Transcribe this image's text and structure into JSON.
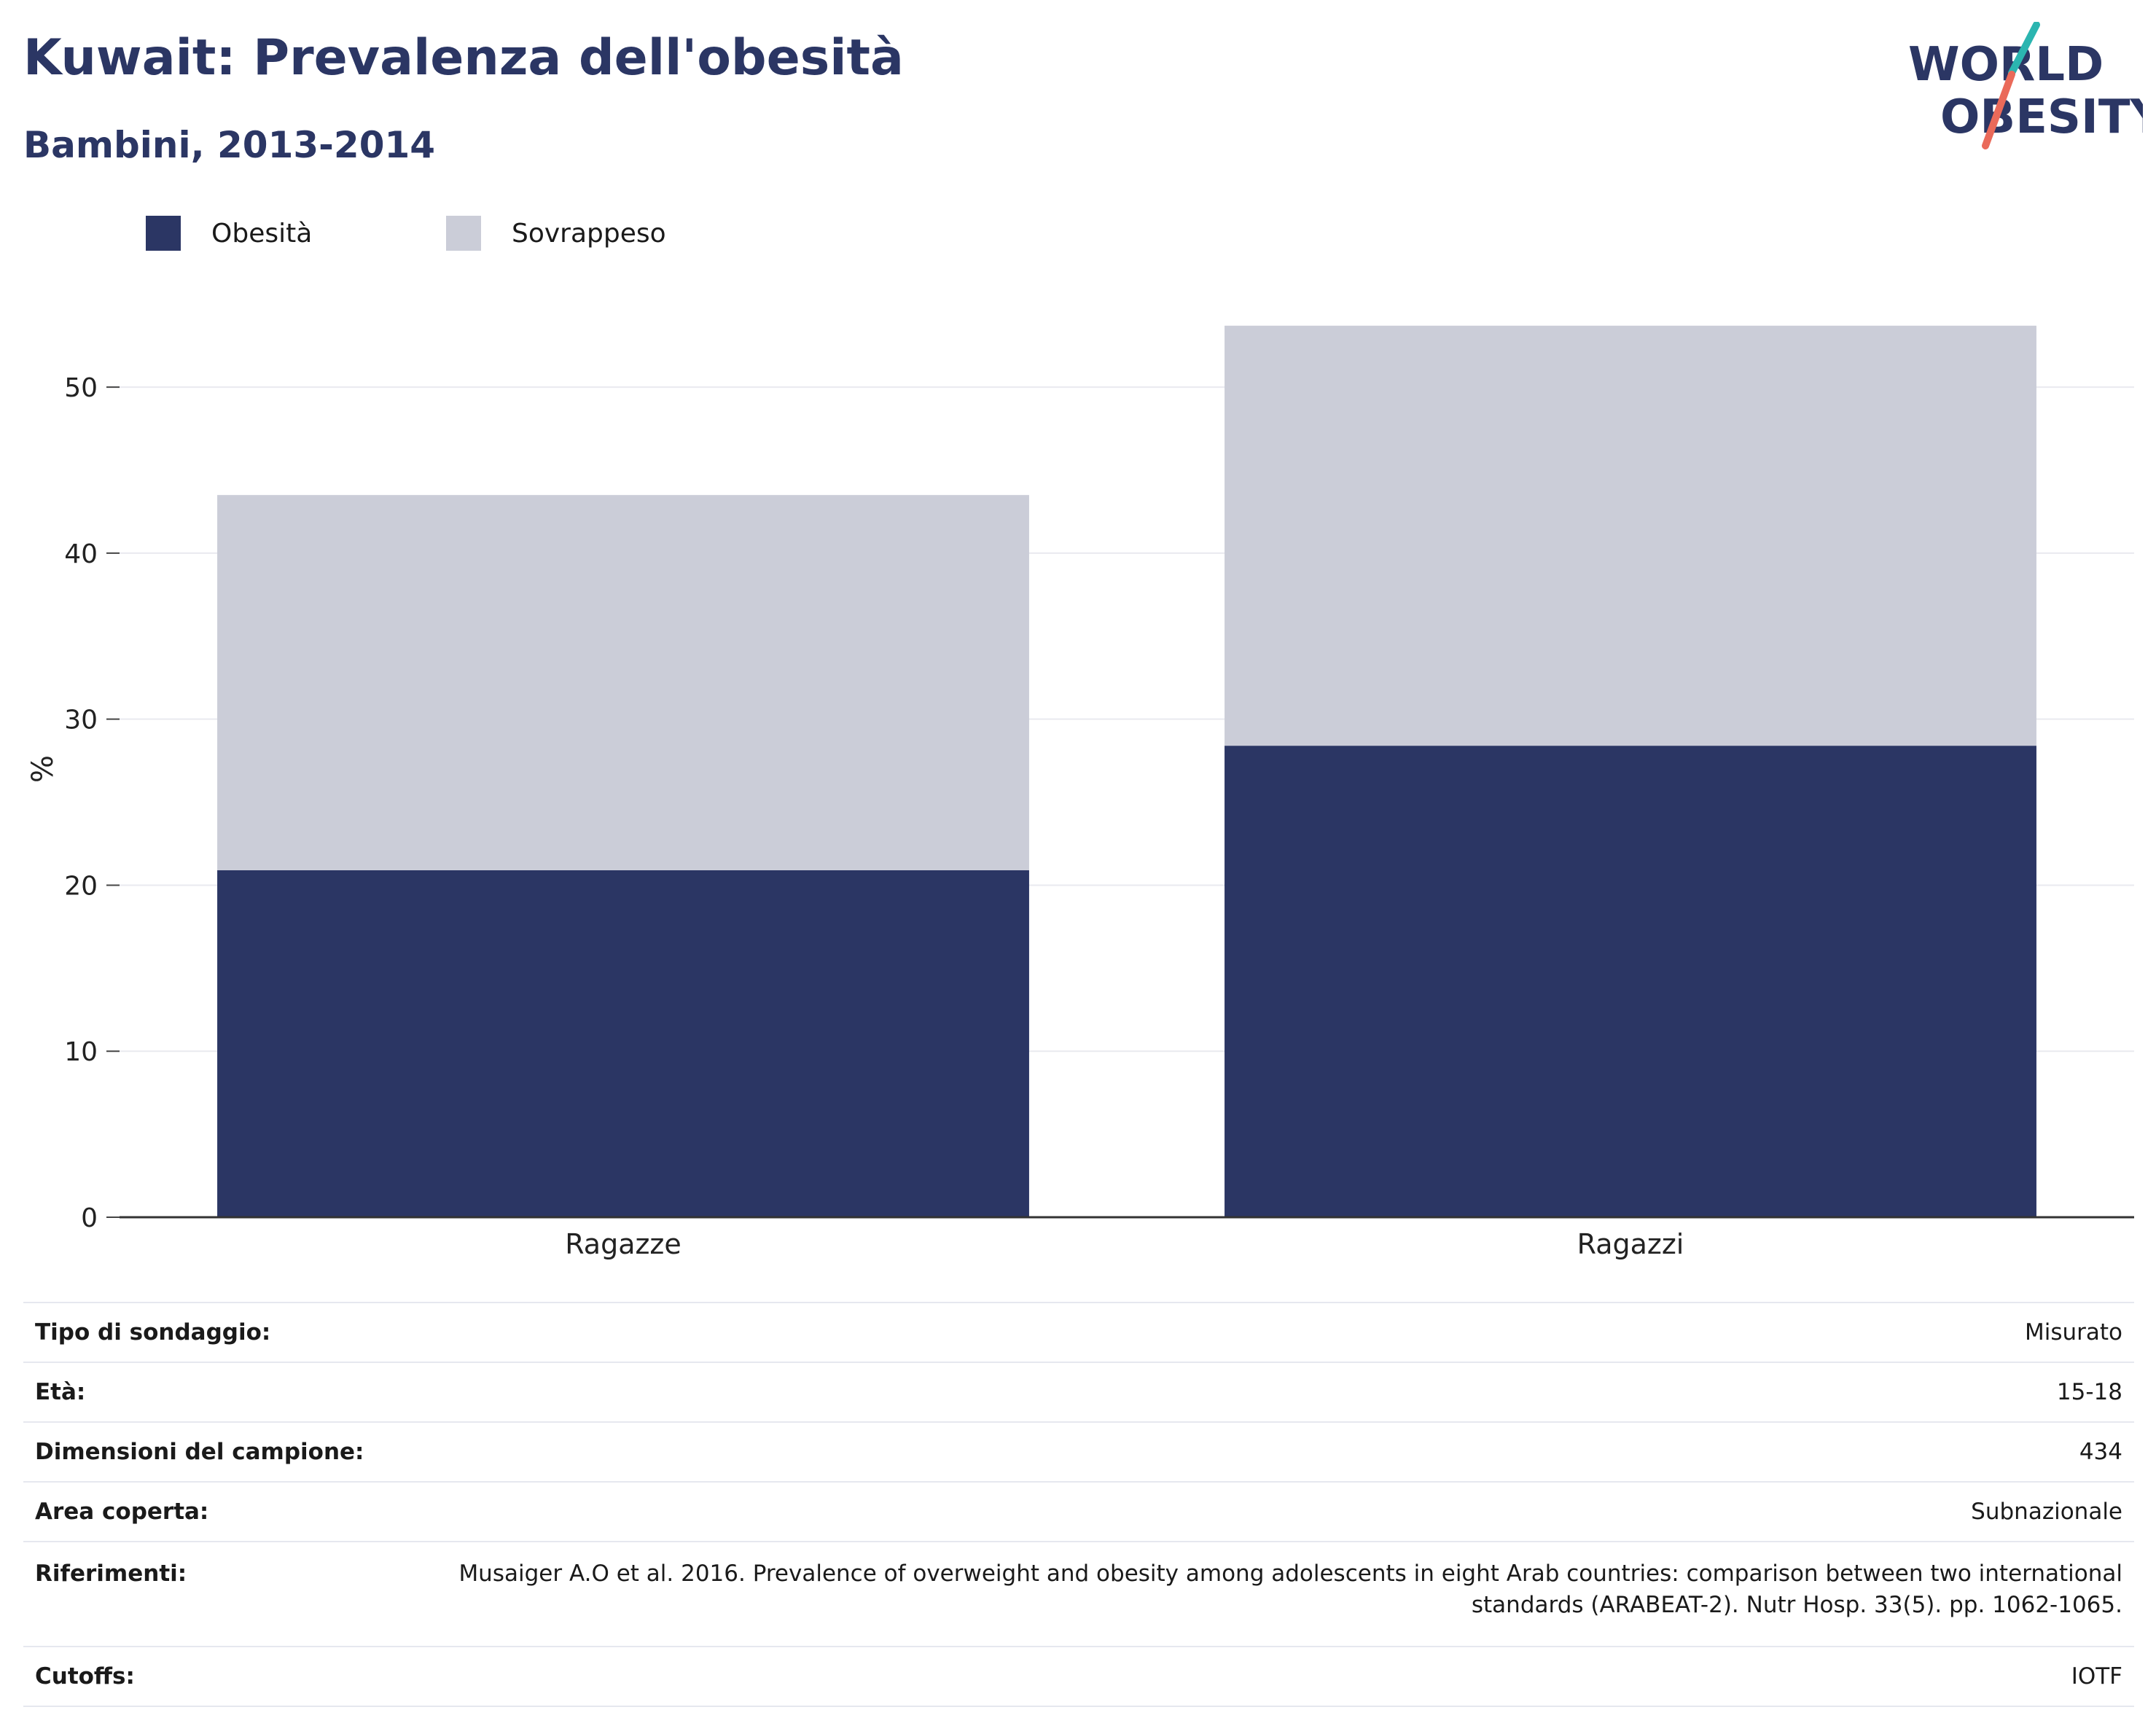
{
  "header": {
    "title": "Kuwait: Prevalenza dell'obesità",
    "subtitle": "Bambini, 2013-2014"
  },
  "logo": {
    "line1": "WORLD",
    "line2": "OBESITY",
    "colors": {
      "text": "#2b3664",
      "slash_top": "#2bb5b0",
      "slash_bottom": "#ea6a5a"
    }
  },
  "chart_data": {
    "type": "bar",
    "stacked": true,
    "categories": [
      "Ragazze",
      "Ragazzi"
    ],
    "series": [
      {
        "name": "Obesità",
        "color": "#2b3664",
        "values": [
          20.9,
          28.4
        ]
      },
      {
        "name": "Sovrappeso",
        "color": "#cbcdd8",
        "values": [
          22.6,
          25.3
        ]
      }
    ],
    "ylabel": "%",
    "ylim": [
      0,
      54
    ],
    "yticks": [
      0,
      10,
      20,
      30,
      40,
      50
    ],
    "grid": true,
    "legend": "top-left"
  },
  "info": [
    {
      "key": "Tipo di sondaggio:",
      "value": "Misurato"
    },
    {
      "key": "Età:",
      "value": "15-18"
    },
    {
      "key": "Dimensioni del campione:",
      "value": "434"
    },
    {
      "key": "Area coperta:",
      "value": "Subnazionale"
    },
    {
      "key": "Riferimenti:",
      "value": "Musaiger A.O et al. 2016. Prevalence of overweight and obesity among adolescents in eight Arab countries: comparison between two international standards (ARABEAT-2). Nutr Hosp. 33(5). pp. 1062-1065."
    },
    {
      "key": "Cutoffs:",
      "value": "IOTF"
    }
  ]
}
